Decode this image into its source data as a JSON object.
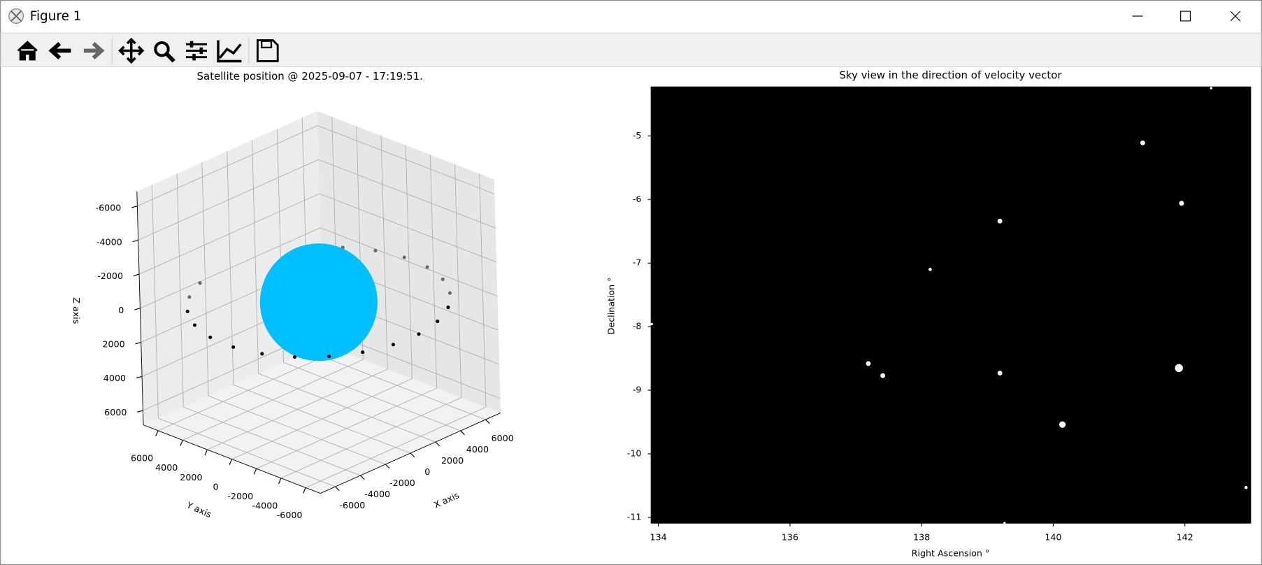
{
  "window": {
    "title": "Figure 1"
  },
  "chart_data": [
    {
      "type": "scatter3d",
      "title": "Satellite position @ 2025-09-07 - 17:19:51.",
      "xlabel": "X axis",
      "ylabel": "Y axis",
      "zlabel": "Z axis",
      "xlim": [
        -7200,
        7200
      ],
      "ylim": [
        -7200,
        7200
      ],
      "zlim": [
        6850,
        -6850
      ],
      "xticks": [
        -6000,
        -4000,
        -2000,
        0,
        2000,
        4000,
        6000
      ],
      "yticks": [
        -6000,
        -4000,
        -2000,
        0,
        2000,
        4000,
        6000
      ],
      "zticks": [
        -6000,
        -4000,
        -2000,
        0,
        2000,
        4000,
        6000
      ],
      "grid": true,
      "sphere": {
        "center": [
          0,
          0,
          0
        ],
        "radius": 3450,
        "color": "#00bfff"
      },
      "series": [
        {
          "color": "#000000",
          "x": [
            -2565,
            -4302,
            -5745,
            -6797,
            -7386,
            -7471,
            -7048,
            -6144,
            -4821,
            -3170,
            -1302,
            654,
            2565,
            4302,
            5745,
            6797,
            7386,
            7471,
            7048,
            6144,
            4821
          ],
          "y": [
            7048,
            6144,
            4821,
            3170,
            1302,
            -654,
            -2565,
            -4302,
            -5745,
            -6797,
            -7386,
            -7471,
            -7048,
            -6144,
            -4821,
            -3170,
            -1302,
            654,
            2565,
            4302,
            5745
          ],
          "z": [
            0,
            0,
            0,
            0,
            0,
            0,
            0,
            0,
            0,
            0,
            0,
            0,
            0,
            0,
            0,
            0,
            0,
            0,
            0,
            0,
            0
          ]
        }
      ]
    },
    {
      "type": "scatter",
      "title": "Sky view in the direction of velocity vector",
      "xlabel": "Right Ascension °",
      "ylabel": "Declination °",
      "xlim": [
        133.89,
        143.0
      ],
      "ylim": [
        -11.09,
        -4.23
      ],
      "xticks": [
        134,
        136,
        138,
        140,
        142
      ],
      "yticks": [
        -11,
        -10,
        -9,
        -8,
        -7,
        -6,
        -5
      ],
      "background": "#000000",
      "series": [
        {
          "color": "#ffffff",
          "x": [
            141.36,
            141.95,
            139.19,
            138.13,
            137.19,
            137.41,
            139.19,
            141.91,
            140.14,
            142.93,
            142.4,
            133.9,
            139.26
          ],
          "values": [
            -5.11,
            -6.06,
            -6.34,
            -7.1,
            -8.58,
            -8.77,
            -8.73,
            -8.65,
            -9.54,
            -10.53,
            -4.25,
            -7.96,
            -11.09
          ],
          "sizes": [
            3,
            3,
            3,
            2,
            3,
            3,
            3,
            5,
            4,
            2,
            1.5,
            1.5,
            1.5
          ]
        }
      ]
    }
  ]
}
